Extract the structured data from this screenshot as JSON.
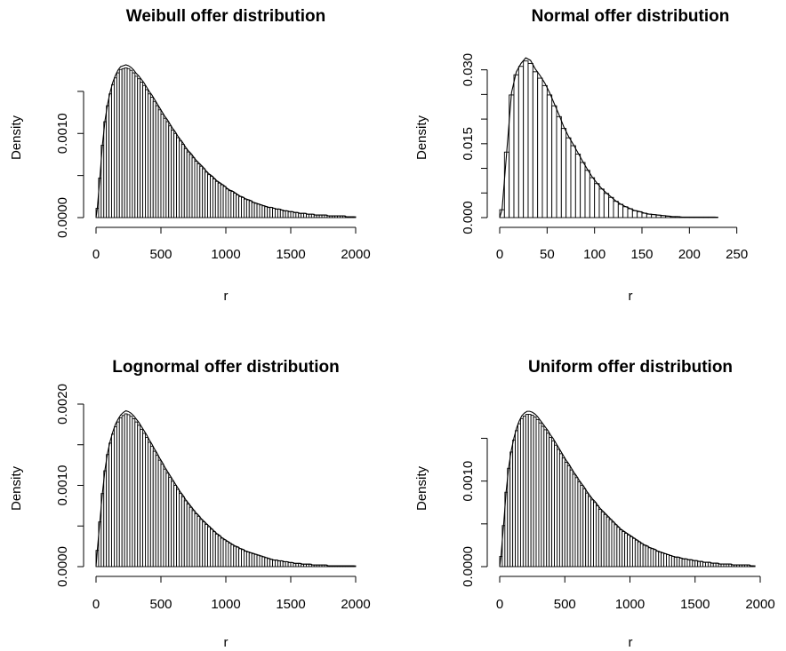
{
  "chart_data": [
    {
      "type": "bar",
      "title": "Weibull offer distribution",
      "xlabel": "r",
      "ylabel": "Density",
      "xlim": [
        0,
        2000
      ],
      "ylim": [
        0,
        0.0019
      ],
      "x_ticks": [
        "0",
        "500",
        "1000",
        "1500",
        "2000"
      ],
      "y_ticks": [
        "0.0000",
        "0.0010"
      ],
      "y_tick_values": [
        0,
        0.001
      ],
      "y_minor_ticks": [
        0.0005,
        0.0015
      ],
      "bin_width": 20,
      "bin_start": 0,
      "values": [
        0.00011,
        0.00047,
        0.00086,
        0.00114,
        0.00133,
        0.00147,
        0.00158,
        0.00166,
        0.00172,
        0.00176,
        0.00177,
        0.00178,
        0.00177,
        0.00175,
        0.00172,
        0.00168,
        0.00165,
        0.00161,
        0.00157,
        0.00152,
        0.00147,
        0.00143,
        0.00138,
        0.00133,
        0.00128,
        0.00123,
        0.00118,
        0.00114,
        0.00109,
        0.00104,
        0.001,
        0.00095,
        0.00091,
        0.00087,
        0.00082,
        0.00078,
        0.00075,
        0.00071,
        0.00067,
        0.00064,
        0.00061,
        0.00058,
        0.00054,
        0.00051,
        0.00049,
        0.00046,
        0.00043,
        0.00041,
        0.00039,
        0.00037,
        0.00034,
        0.00032,
        0.00031,
        0.00029,
        0.00027,
        0.00025,
        0.00024,
        0.00022,
        0.00021,
        0.0002,
        0.00018,
        0.00017,
        0.00016,
        0.00015,
        0.00014,
        0.00013,
        0.00012,
        0.00012,
        0.00011,
        0.0001,
        0.0001,
        9e-05,
        8e-05,
        8e-05,
        7e-05,
        7e-05,
        6e-05,
        6e-05,
        5e-05,
        5e-05,
        5e-05,
        4e-05,
        4e-05,
        4e-05,
        3e-05,
        3e-05,
        3e-05,
        3e-05,
        3e-05,
        2e-05,
        2e-05,
        2e-05,
        2e-05,
        2e-05,
        2e-05,
        2e-05,
        1e-05,
        1e-05,
        1e-05,
        1e-05
      ],
      "grid": false,
      "legend": "none",
      "overlay": "density curve"
    },
    {
      "type": "bar",
      "title": "Normal offer distribution",
      "xlabel": "r",
      "ylabel": "Density",
      "xlim": [
        0,
        285
      ],
      "ylim": [
        0,
        0.033
      ],
      "x_ticks": [
        "0",
        "50",
        "100",
        "150",
        "200",
        "250"
      ],
      "y_ticks": [
        "0.000",
        "0.015",
        "0.030"
      ],
      "y_tick_values": [
        0,
        0.015,
        0.03
      ],
      "y_minor_ticks": [
        0.005,
        0.01,
        0.02,
        0.025
      ],
      "bin_width": 5,
      "bin_start": 0,
      "values": [
        0.0016,
        0.0133,
        0.0249,
        0.029,
        0.0307,
        0.0318,
        0.0313,
        0.0296,
        0.0283,
        0.0268,
        0.0249,
        0.0227,
        0.0205,
        0.0181,
        0.0162,
        0.0146,
        0.0129,
        0.0112,
        0.0096,
        0.0081,
        0.0069,
        0.0058,
        0.0049,
        0.0041,
        0.0033,
        0.0027,
        0.0022,
        0.0018,
        0.0014,
        0.0012,
        0.0009,
        0.0007,
        0.0006,
        0.0005,
        0.0004,
        0.0003,
        0.0002,
        0.0002,
        0.0001,
        0.0001,
        0.0001,
        0.0001,
        0.0001,
        0.0001,
        0.0001,
        0.0001
      ],
      "grid": false,
      "legend": "none",
      "overlay": "density curve"
    },
    {
      "type": "bar",
      "title": "Lognormal offer distribution",
      "xlabel": "r",
      "ylabel": "Density",
      "xlim": [
        0,
        2000
      ],
      "ylim": [
        0,
        0.002
      ],
      "x_ticks": [
        "0",
        "500",
        "1000",
        "1500",
        "2000"
      ],
      "y_ticks": [
        "0.0000",
        "0.0010",
        "0.0020"
      ],
      "y_tick_values": [
        0,
        0.001,
        0.002
      ],
      "y_minor_ticks": [
        0.0005,
        0.0015
      ],
      "bin_width": 20,
      "bin_start": 0,
      "values": [
        0.0002,
        0.00055,
        0.0009,
        0.00118,
        0.00138,
        0.00152,
        0.00163,
        0.00172,
        0.00178,
        0.00183,
        0.00186,
        0.00188,
        0.00187,
        0.00185,
        0.00182,
        0.00178,
        0.00174,
        0.00169,
        0.00164,
        0.00159,
        0.00153,
        0.00148,
        0.00142,
        0.00137,
        0.00131,
        0.00126,
        0.0012,
        0.00115,
        0.0011,
        0.00105,
        0.001,
        0.00095,
        0.0009,
        0.00086,
        0.00081,
        0.00077,
        0.00073,
        0.00069,
        0.00065,
        0.00062,
        0.00058,
        0.00055,
        0.00052,
        0.00049,
        0.00046,
        0.00043,
        0.0004,
        0.00038,
        0.00035,
        0.00033,
        0.00031,
        0.00029,
        0.00027,
        0.00025,
        0.00024,
        0.00022,
        0.00021,
        0.00019,
        0.00018,
        0.00017,
        0.00016,
        0.00015,
        0.00014,
        0.00013,
        0.00012,
        0.00011,
        0.0001,
        9e-05,
        8e-05,
        8e-05,
        7e-05,
        7e-05,
        6e-05,
        6e-05,
        5e-05,
        5e-05,
        4e-05,
        4e-05,
        4e-05,
        3e-05,
        3e-05,
        3e-05,
        3e-05,
        2e-05,
        2e-05,
        2e-05,
        2e-05,
        2e-05,
        2e-05,
        1e-05,
        1e-05,
        1e-05,
        1e-05,
        1e-05,
        1e-05,
        1e-05,
        1e-05,
        1e-05,
        1e-05,
        1e-05
      ],
      "grid": false,
      "legend": "none",
      "overlay": "density curve"
    },
    {
      "type": "bar",
      "title": "Uniform offer distribution",
      "xlabel": "r",
      "ylabel": "Density",
      "xlim": [
        0,
        2000
      ],
      "ylim": [
        0,
        0.0019
      ],
      "x_ticks": [
        "0",
        "500",
        "1000",
        "1500",
        "2000"
      ],
      "y_ticks": [
        "0.0000",
        "0.0010"
      ],
      "y_tick_values": [
        0,
        0.001
      ],
      "y_minor_ticks": [
        0.0005,
        0.0015
      ],
      "bin_width": 20,
      "bin_start": 0,
      "values": [
        0.00012,
        0.00048,
        0.00087,
        0.00115,
        0.00134,
        0.00148,
        0.00159,
        0.00167,
        0.00173,
        0.00176,
        0.00178,
        0.00178,
        0.00177,
        0.00175,
        0.00172,
        0.00168,
        0.00164,
        0.0016,
        0.00156,
        0.00151,
        0.00147,
        0.00142,
        0.00137,
        0.00132,
        0.00127,
        0.00122,
        0.00118,
        0.00113,
        0.00108,
        0.00104,
        0.00099,
        0.00095,
        0.00091,
        0.00086,
        0.00082,
        0.00078,
        0.00075,
        0.00071,
        0.00067,
        0.00064,
        0.00061,
        0.00058,
        0.00055,
        0.00052,
        0.00049,
        0.00046,
        0.00043,
        0.00041,
        0.00039,
        0.00037,
        0.00035,
        0.00033,
        0.00031,
        0.00029,
        0.00027,
        0.00025,
        0.00024,
        0.00022,
        0.00021,
        0.0002,
        0.00018,
        0.00017,
        0.00016,
        0.00015,
        0.00014,
        0.00013,
        0.00012,
        0.00011,
        0.00011,
        0.0001,
        9e-05,
        9e-05,
        8e-05,
        8e-05,
        7e-05,
        7e-05,
        6e-05,
        6e-05,
        5e-05,
        5e-05,
        5e-05,
        4e-05,
        4e-05,
        4e-05,
        3e-05,
        3e-05,
        3e-05,
        3e-05,
        3e-05,
        2e-05,
        2e-05,
        2e-05,
        2e-05,
        2e-05,
        2e-05,
        2e-05,
        1e-05,
        1e-05
      ],
      "grid": false,
      "legend": "none",
      "overlay": "density curve"
    }
  ]
}
